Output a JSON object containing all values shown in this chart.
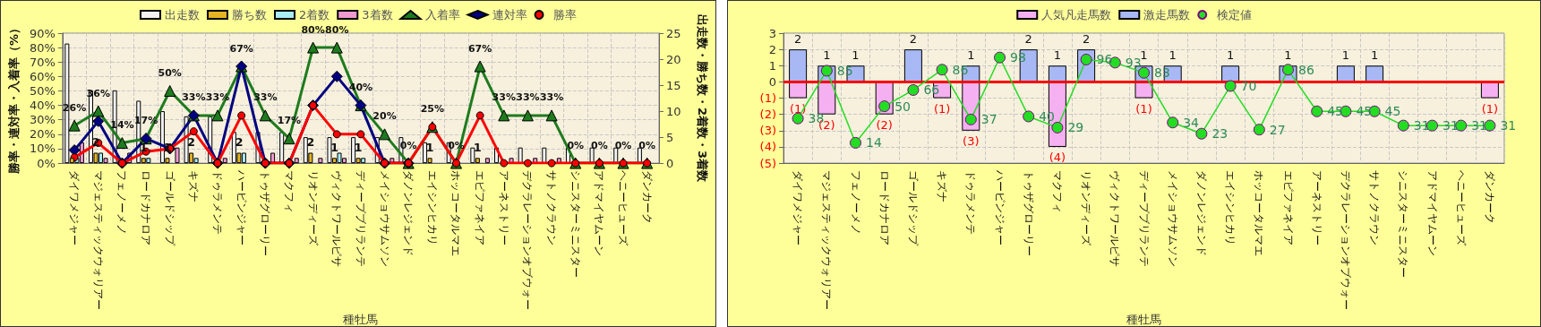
{
  "chart_data": [
    {
      "type": "bar",
      "xlabel": "種牡馬",
      "ylabel": "勝率・連対率・入着率（%）",
      "y2label": "出走数・勝ち数・2着数・3着数",
      "categories": [
        "ダイワメジャー",
        "マジェスティックウォリアー",
        "フェノーメノ",
        "ロードカナロア",
        "ゴールドシップ",
        "キズナ",
        "ドゥラメンテ",
        "ハービンジャー",
        "トゥザグローリー",
        "マクフィ",
        "リオンディーズ",
        "ヴィクトワールピサ",
        "ディープブリランテ",
        "メイショウサムソン",
        "ダノンレジェンド",
        "エイシンヒカリ",
        "ホッコータルマエ",
        "エピファネイア",
        "アーネストリー",
        "デクラレーションオブウォー",
        "サトノクラウン",
        "シニスターミニスター",
        "アドマイヤムーン",
        "ヘニーヒューズ",
        "ダンカーク"
      ],
      "ylim": [
        0,
        90
      ],
      "yticks": [
        {
          "value": 0,
          "label": "0%"
        },
        {
          "value": 10,
          "label": "10%"
        },
        {
          "value": 20,
          "label": "20%"
        },
        {
          "value": 30,
          "label": "30%"
        },
        {
          "value": 40,
          "label": "40%"
        },
        {
          "value": 50,
          "label": "50%"
        },
        {
          "value": 60,
          "label": "60%"
        },
        {
          "value": 70,
          "label": "70%"
        },
        {
          "value": 80,
          "label": "80%"
        },
        {
          "value": 90,
          "label": "90%"
        }
      ],
      "y2lim": [
        0,
        25
      ],
      "y2ticks": [
        0,
        5,
        10,
        15,
        20,
        25
      ],
      "grid": true,
      "legend": "top",
      "series": [
        {
          "name": "出走数",
          "axis": "y2",
          "color": "#f2f2f2",
          "values": [
            23,
            14,
            14,
            12,
            10,
            9,
            9,
            6,
            6,
            6,
            5,
            5,
            5,
            5,
            5,
            4,
            4,
            3,
            3,
            3,
            3,
            3,
            3,
            3,
            3
          ]
        },
        {
          "name": "勝ち数",
          "axis": "y2",
          "color": "#e6b422",
          "values": [
            1,
            2,
            0,
            1,
            1,
            2,
            0,
            2,
            0,
            0,
            2,
            1,
            1,
            0,
            0,
            1,
            0,
            1,
            0,
            0,
            0,
            0,
            0,
            0,
            0
          ],
          "value_labels": [
            null,
            "2",
            null,
            "1",
            "1",
            "2",
            null,
            "2",
            null,
            null,
            "2",
            "1",
            "1",
            null,
            null,
            "1",
            null,
            "1",
            null,
            null,
            null,
            null,
            null,
            null,
            null
          ]
        },
        {
          "name": "2着数",
          "axis": "y2",
          "color": "#a8ecf4",
          "values": [
            1,
            2,
            0,
            1,
            0,
            1,
            0,
            2,
            0,
            0,
            0,
            2,
            1,
            0,
            0,
            0,
            0,
            0,
            0,
            0,
            0,
            0,
            0,
            0,
            0
          ]
        },
        {
          "name": "3着数",
          "axis": "y2",
          "color": "#f09ad0",
          "values": [
            4,
            1,
            2,
            0,
            3,
            0,
            1,
            0,
            2,
            1,
            1,
            1,
            0,
            1,
            0,
            0,
            0,
            1,
            1,
            1,
            1,
            0,
            0,
            0,
            0
          ]
        },
        {
          "name": "入着率",
          "type": "line",
          "marker": "triangle",
          "color": "#1e7b1e",
          "values": [
            26,
            36,
            14,
            17,
            50,
            33,
            33,
            67,
            33,
            17,
            80,
            80,
            40,
            20,
            0,
            25,
            0,
            67,
            33,
            33,
            33,
            0,
            0,
            0,
            0
          ],
          "value_labels": [
            "26%",
            "36%",
            "14%",
            "17%",
            "50%",
            "33%",
            "33%",
            "67%",
            "33%",
            "17%",
            "80%",
            "80%",
            "40%",
            "20%",
            "0%",
            "25%",
            "0%",
            "67%",
            "33%",
            "33%",
            "33%",
            "0%",
            "0%",
            "0%",
            "0%"
          ]
        },
        {
          "name": "連対率",
          "type": "line",
          "marker": "diamond",
          "color": "#000080",
          "values": [
            9,
            29,
            0,
            17,
            10,
            33,
            0,
            67,
            0,
            0,
            40,
            60,
            40,
            0,
            0,
            null,
            null,
            null,
            null,
            null,
            null,
            null,
            null,
            null,
            null
          ]
        },
        {
          "name": "勝率",
          "type": "line",
          "marker": "circle",
          "color": "#ff0000",
          "values": [
            4,
            14,
            0,
            8,
            10,
            22,
            0,
            33,
            0,
            0,
            40,
            20,
            20,
            0,
            0,
            25,
            0,
            33,
            0,
            0,
            0,
            0,
            0,
            0,
            0
          ]
        }
      ]
    },
    {
      "type": "bar",
      "xlabel": "種牡馬",
      "stacked": true,
      "categories": [
        "ダイワメジャー",
        "マジェスティックウォリアー",
        "フェノーメノ",
        "ロードカナロア",
        "ゴールドシップ",
        "キズナ",
        "ドゥラメンテ",
        "ハービンジャー",
        "トゥザグローリー",
        "マクフィ",
        "リオンディーズ",
        "ヴィクトワールピサ",
        "ディープブリランテ",
        "メイショウサムソン",
        "ダノンレジェンド",
        "エイシンヒカリ",
        "ホッコータルマエ",
        "エピファネイア",
        "アーネストリー",
        "デクラレーションオブウォー",
        "サトノクラウン",
        "シニスターミニスター",
        "アドマイヤムーン",
        "ヘニーヒューズ",
        "ダンカーク"
      ],
      "ylim": [
        -5,
        3
      ],
      "yticks": [
        {
          "value": -5,
          "label": "(5)"
        },
        {
          "value": -4,
          "label": "(4)"
        },
        {
          "value": -3,
          "label": "(3)"
        },
        {
          "value": -2,
          "label": "(2)"
        },
        {
          "value": -1,
          "label": "(1)"
        },
        0,
        1,
        2,
        3
      ],
      "y2lim": [
        -6,
        122
      ],
      "grid": true,
      "legend": "top",
      "ref_lines": [
        {
          "axis": "y",
          "value": 0,
          "color": "#ff0000"
        }
      ],
      "series": [
        {
          "name": "人気凡走馬数",
          "color": "#f4b0f0",
          "values": [
            -1,
            -2,
            0,
            -2,
            0,
            -1,
            -3,
            0,
            0,
            -4,
            0,
            0,
            -1,
            0,
            0,
            0,
            0,
            0,
            0,
            0,
            0,
            0,
            0,
            0,
            -1
          ],
          "value_labels": [
            "(1)",
            "(2)",
            null,
            "(2)",
            null,
            "(1)",
            "(3)",
            null,
            null,
            "(4)",
            null,
            null,
            "(1)",
            null,
            null,
            null,
            null,
            null,
            null,
            null,
            null,
            null,
            null,
            null,
            "(1)"
          ]
        },
        {
          "name": "激走馬数",
          "color": "#a8b8f4",
          "values": [
            2,
            1,
            1,
            0,
            2,
            0,
            1,
            0,
            2,
            1,
            2,
            0,
            1,
            1,
            0,
            1,
            0,
            1,
            0,
            1,
            1,
            0,
            0,
            0,
            0
          ],
          "value_labels": [
            "2",
            "1",
            "1",
            null,
            "2",
            null,
            "1",
            null,
            "2",
            "1",
            "2",
            null,
            "1",
            "1",
            null,
            "1",
            null,
            "1",
            null,
            "1",
            "1",
            null,
            null,
            null,
            null
          ]
        },
        {
          "name": "検定値",
          "type": "line",
          "axis": "y2",
          "marker": "circle",
          "color": "#22dd22",
          "values": [
            38,
            85,
            14,
            50,
            66,
            86,
            37,
            98,
            40,
            29,
            96,
            93,
            83,
            34,
            23,
            70,
            27,
            86,
            45,
            45,
            45,
            31,
            31,
            31,
            31
          ],
          "value_labels": [
            "38",
            "85",
            "14",
            "50",
            "66",
            "86",
            "37",
            "98",
            "40",
            "29",
            "96",
            "93",
            "83",
            "34",
            "23",
            "70",
            "27",
            "86",
            "45",
            "45",
            "45",
            "31",
            "31",
            "31",
            "31"
          ]
        }
      ]
    }
  ]
}
